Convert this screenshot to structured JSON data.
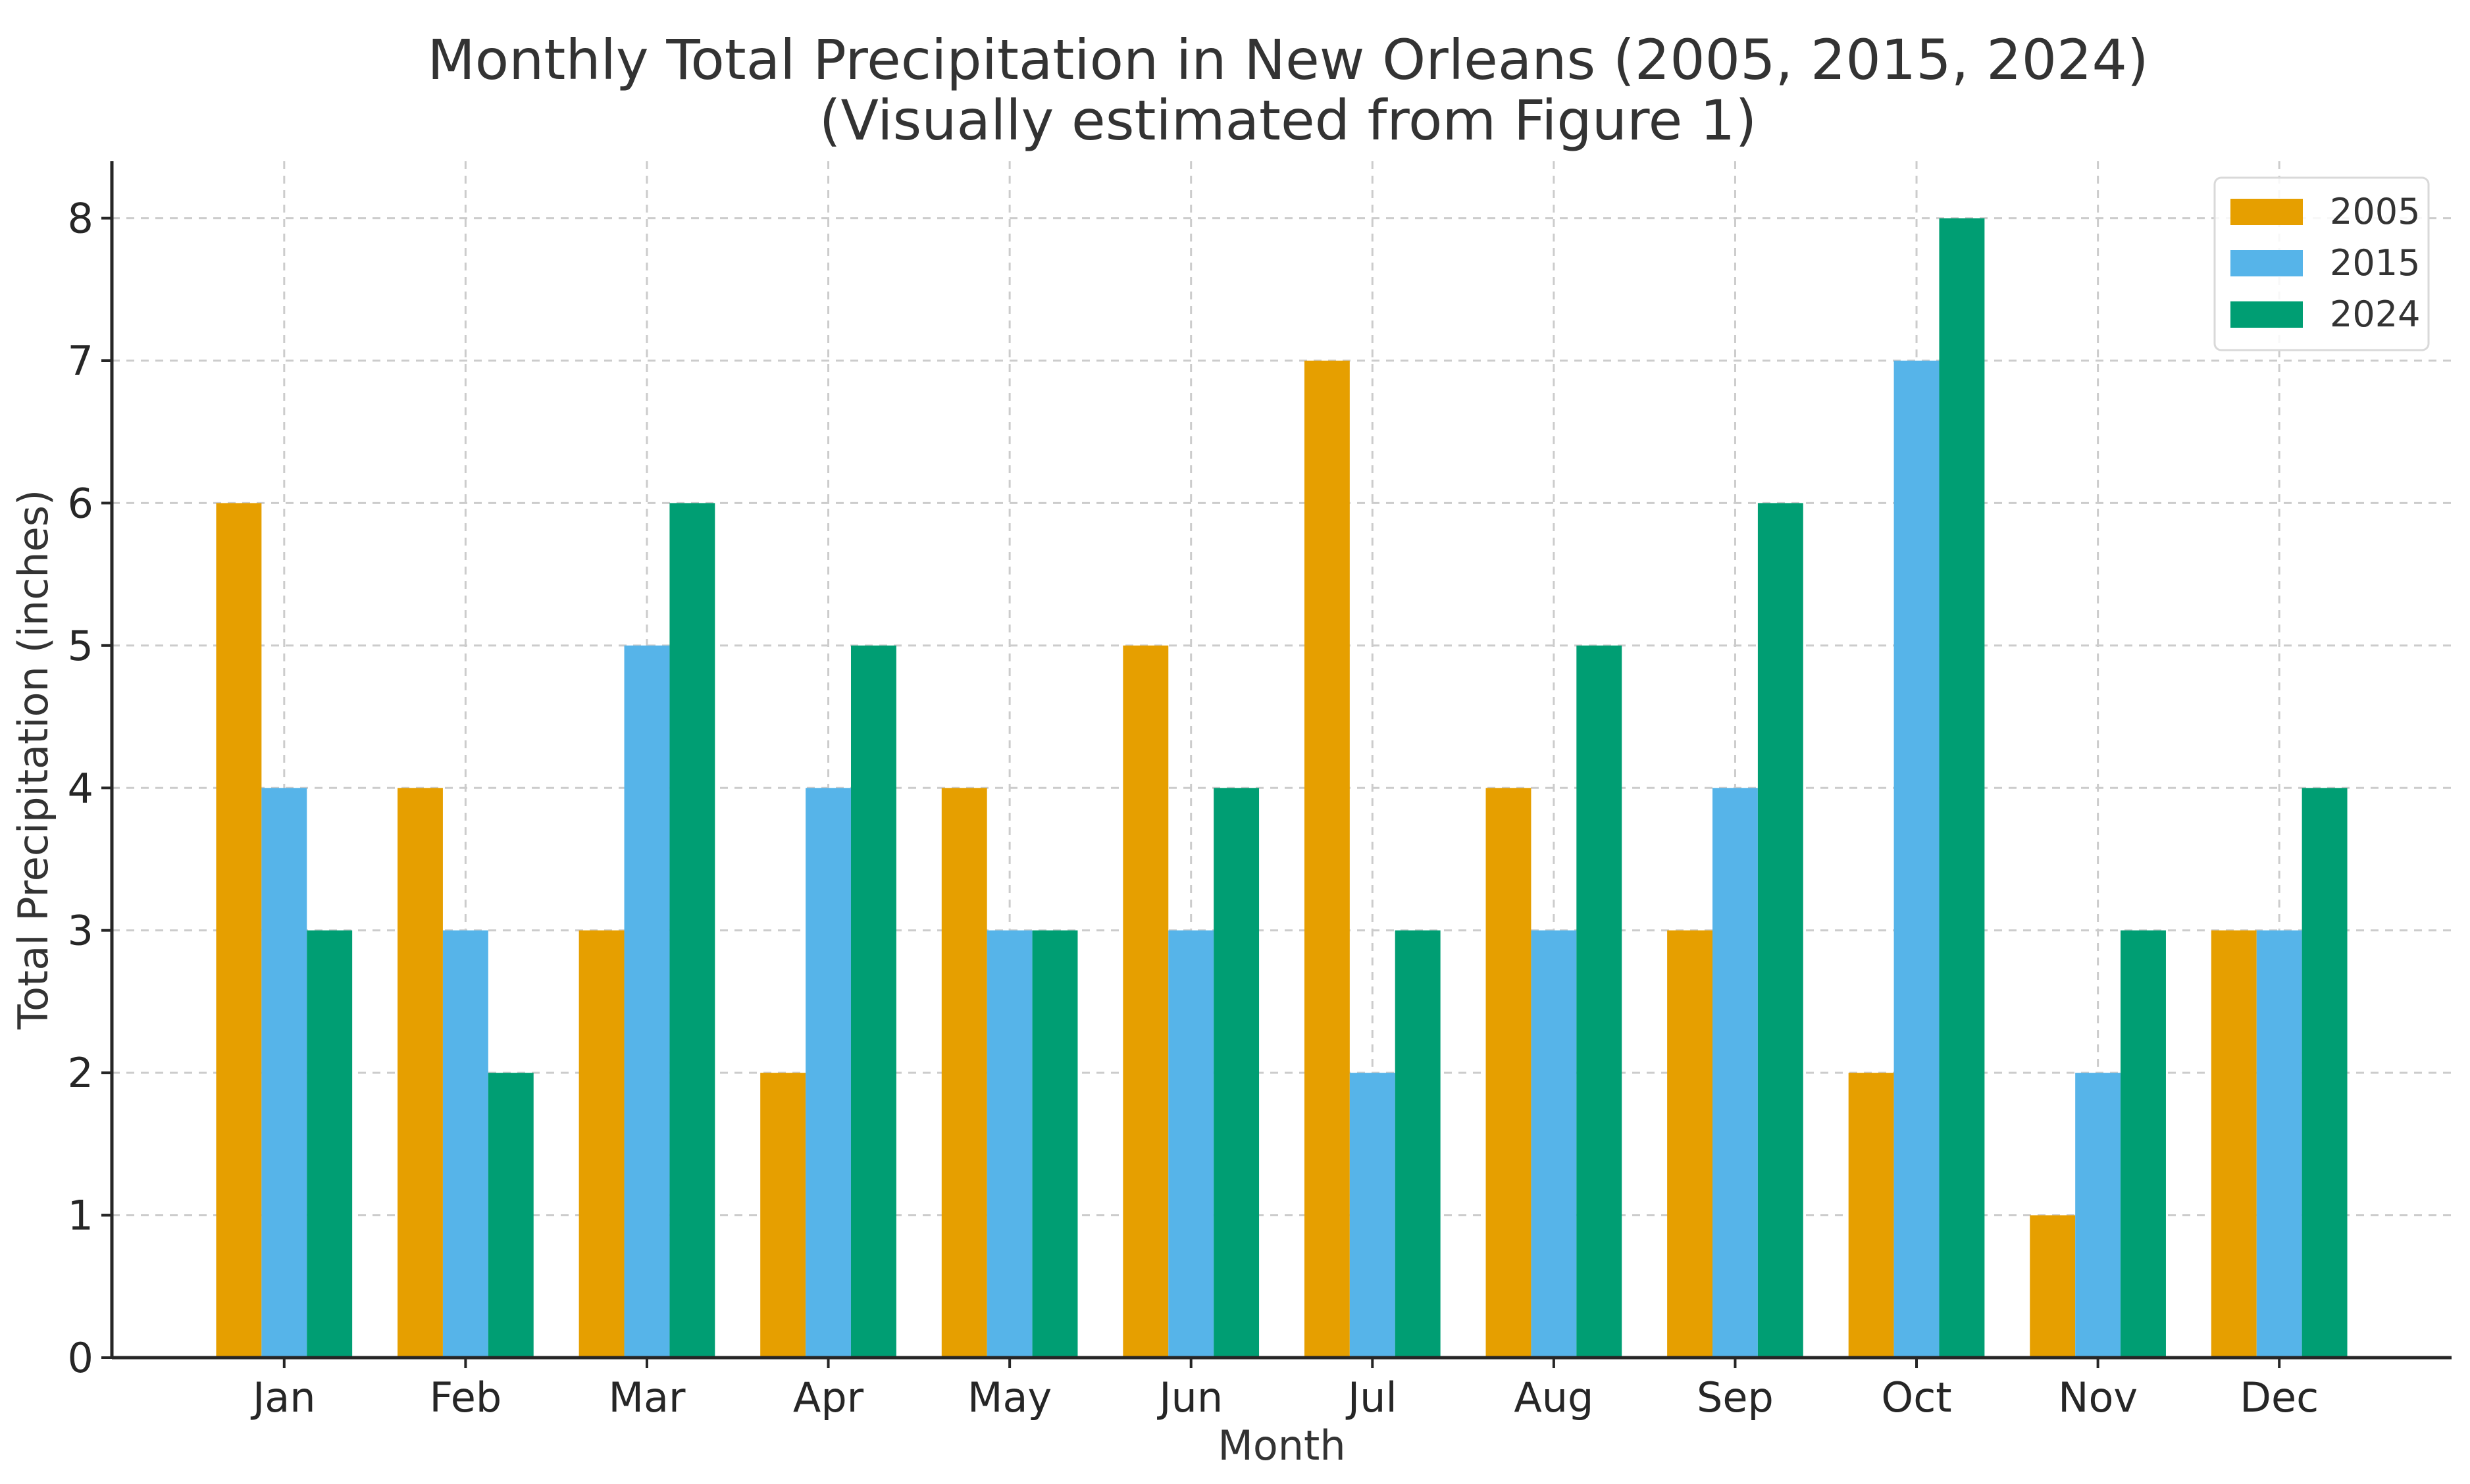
{
  "chart_data": {
    "type": "bar",
    "title": "Monthly Total Precipitation in New Orleans (2005, 2015, 2024)",
    "subtitle": "(Visually estimated from Figure 1)",
    "xlabel": "Month",
    "ylabel": "Total Precipitation (inches)",
    "categories": [
      "Jan",
      "Feb",
      "Mar",
      "Apr",
      "May",
      "Jun",
      "Jul",
      "Aug",
      "Sep",
      "Oct",
      "Nov",
      "Dec"
    ],
    "series": [
      {
        "name": "2005",
        "color": "#E69F00",
        "values": [
          6,
          4,
          3,
          2,
          4,
          5,
          7,
          4,
          3,
          2,
          1,
          3
        ]
      },
      {
        "name": "2015",
        "color": "#56B4E9",
        "values": [
          4,
          3,
          5,
          4,
          3,
          3,
          2,
          3,
          4,
          7,
          2,
          3
        ]
      },
      {
        "name": "2024",
        "color": "#009E73",
        "values": [
          3,
          2,
          6,
          5,
          3,
          4,
          3,
          5,
          6,
          8,
          3,
          4
        ]
      }
    ],
    "ylim": [
      0,
      8.4
    ],
    "yticks": [
      0,
      1,
      2,
      3,
      4,
      5,
      6,
      7,
      8
    ],
    "grid": true,
    "legend_position": "top-right"
  }
}
